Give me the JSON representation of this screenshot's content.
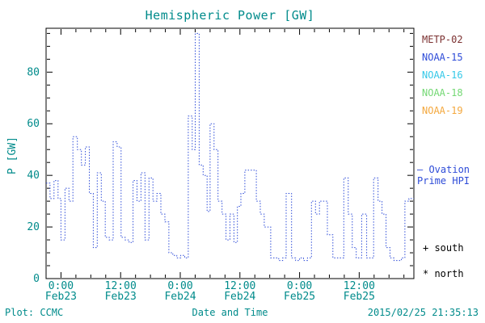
{
  "footer": {
    "left": "Plot: CCMC",
    "timestamp": "2015/02/25 21:35:13"
  },
  "chart_data": {
    "type": "line",
    "subtype": "step-dotted",
    "title": "Hemispheric Power [GW]",
    "xlabel": "Date and Time",
    "ylabel": "P [GW]",
    "ylim": [
      0,
      97
    ],
    "yticks": [
      0,
      20,
      40,
      60,
      80
    ],
    "x_range_hours": [
      0,
      74
    ],
    "xticks": [
      {
        "hour": 3,
        "time": "0:00",
        "date": "Feb23"
      },
      {
        "hour": 15,
        "time": "12:00",
        "date": "Feb23"
      },
      {
        "hour": 27,
        "time": "0:00",
        "date": "Feb24"
      },
      {
        "hour": 39,
        "time": "12:00",
        "date": "Feb24"
      },
      {
        "hour": 51,
        "time": "0:00",
        "date": "Feb25"
      },
      {
        "hour": 63,
        "time": "12:00",
        "date": "Feb25"
      }
    ],
    "series": [
      {
        "name": "Ovation Prime HPI",
        "color": "#2e4cd8",
        "style": "dotted-step",
        "points": [
          [
            0,
            37
          ],
          [
            0.8,
            31
          ],
          [
            1.6,
            38
          ],
          [
            2.4,
            31
          ],
          [
            3,
            15
          ],
          [
            3.8,
            35
          ],
          [
            4.6,
            30
          ],
          [
            5.4,
            55
          ],
          [
            6.3,
            50
          ],
          [
            7.1,
            44
          ],
          [
            7.9,
            51
          ],
          [
            8.7,
            33
          ],
          [
            9.5,
            12
          ],
          [
            10.3,
            41
          ],
          [
            11.1,
            30
          ],
          [
            11.9,
            16
          ],
          [
            12.7,
            15
          ],
          [
            13.5,
            53
          ],
          [
            14.3,
            51
          ],
          [
            15.1,
            16
          ],
          [
            15.9,
            15
          ],
          [
            16.7,
            14
          ],
          [
            17.5,
            38
          ],
          [
            18.3,
            30
          ],
          [
            19.1,
            41
          ],
          [
            19.9,
            15
          ],
          [
            20.7,
            39
          ],
          [
            21.5,
            30
          ],
          [
            22.3,
            33
          ],
          [
            23.1,
            25
          ],
          [
            23.9,
            22
          ],
          [
            24.7,
            10
          ],
          [
            25.5,
            9
          ],
          [
            26.3,
            8
          ],
          [
            27.1,
            9
          ],
          [
            27.9,
            8
          ],
          [
            28.6,
            63
          ],
          [
            29.4,
            50
          ],
          [
            30,
            95
          ],
          [
            30.8,
            44
          ],
          [
            31.6,
            40
          ],
          [
            32.4,
            26
          ],
          [
            33,
            60
          ],
          [
            33.8,
            50
          ],
          [
            34.6,
            30
          ],
          [
            35.4,
            25
          ],
          [
            36.2,
            15
          ],
          [
            37,
            25
          ],
          [
            37.8,
            14
          ],
          [
            38.5,
            28
          ],
          [
            39.2,
            33
          ],
          [
            40,
            42
          ],
          [
            41.5,
            42
          ],
          [
            42.3,
            30
          ],
          [
            43.1,
            25
          ],
          [
            43.9,
            20
          ],
          [
            45.2,
            8
          ],
          [
            46,
            8
          ],
          [
            46.8,
            7
          ],
          [
            47.6,
            8
          ],
          [
            48.3,
            33
          ],
          [
            49.4,
            8
          ],
          [
            50.2,
            7
          ],
          [
            51,
            8
          ],
          [
            51.8,
            7
          ],
          [
            52.6,
            8
          ],
          [
            53.4,
            30
          ],
          [
            54.2,
            25
          ],
          [
            55,
            30
          ],
          [
            56.6,
            17
          ],
          [
            57.7,
            8
          ],
          [
            58.6,
            8
          ],
          [
            59.9,
            39
          ],
          [
            60.8,
            25
          ],
          [
            61.6,
            12
          ],
          [
            62.4,
            8
          ],
          [
            63.5,
            25
          ],
          [
            64.5,
            8
          ],
          [
            65.9,
            39
          ],
          [
            66.8,
            30
          ],
          [
            67.6,
            25
          ],
          [
            68.4,
            12
          ],
          [
            69.2,
            8
          ],
          [
            70,
            7
          ],
          [
            71.5,
            8
          ],
          [
            72.2,
            30
          ],
          [
            73,
            31
          ],
          [
            74,
            31
          ]
        ]
      }
    ],
    "legend": [
      {
        "label": "METP-02",
        "color": "#7b3030"
      },
      {
        "label": "NOAA-15",
        "color": "#2e4cd8"
      },
      {
        "label": "NOAA-16",
        "color": "#35c8e8"
      },
      {
        "label": "NOAA-18",
        "color": "#74d874"
      },
      {
        "label": "NOAA-19",
        "color": "#f4a83e"
      }
    ],
    "annotations": {
      "ovation_line1": "— Ovation",
      "ovation_line2": "Prime HPI",
      "south_marker": "+ south",
      "north_marker": "* north"
    },
    "colors": {
      "text": "#008b8b",
      "frame": "#000000",
      "marker_text": "#000000",
      "background": "#ffffff"
    }
  }
}
